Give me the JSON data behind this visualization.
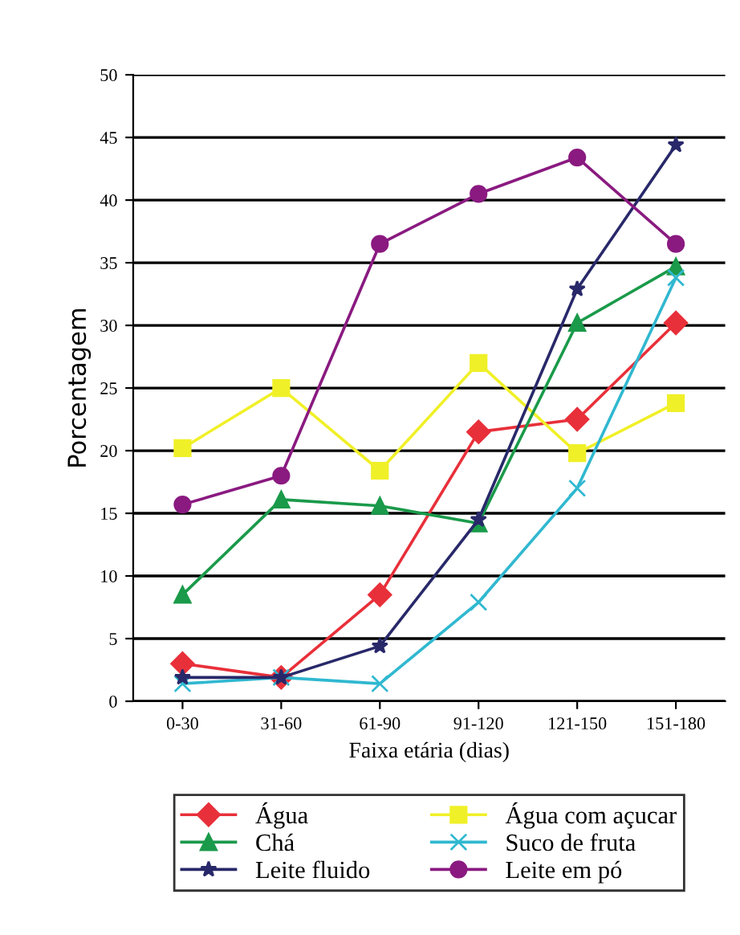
{
  "chart_data": {
    "type": "line",
    "xlabel": "Faixa etária (dias)",
    "ylabel": "Porcentagem",
    "categories": [
      "0-30",
      "31-60",
      "61-90",
      "91-120",
      "121-150",
      "151-180"
    ],
    "series": [
      {
        "name": "Água",
        "color": "#e8303a",
        "marker": "diamond",
        "values": [
          3,
          1.9,
          8.5,
          21.5,
          22.5,
          30.2
        ]
      },
      {
        "name": "Água com açucar",
        "color": "#f0f028",
        "marker": "square",
        "values": [
          20.2,
          25,
          18.4,
          27,
          19.8,
          23.8
        ]
      },
      {
        "name": "Chá",
        "color": "#1a9a4a",
        "marker": "triangle",
        "values": [
          8.5,
          16.1,
          15.6,
          14.2,
          30.2,
          34.7
        ]
      },
      {
        "name": "Suco de fruta",
        "color": "#30b8d0",
        "marker": "cross",
        "values": [
          1.4,
          1.9,
          1.4,
          7.9,
          17,
          33.8
        ]
      },
      {
        "name": "Leite fluido",
        "color": "#28286a",
        "marker": "star",
        "values": [
          1.9,
          1.9,
          4.4,
          14.5,
          32.9,
          44.4
        ]
      },
      {
        "name": "Leite em pó",
        "color": "#8a1a80",
        "marker": "circle",
        "values": [
          15.7,
          18,
          36.5,
          40.5,
          43.4,
          36.5
        ]
      }
    ],
    "ylim": [
      0,
      50
    ],
    "yticks": [
      0,
      5,
      10,
      15,
      20,
      25,
      30,
      35,
      40,
      45,
      50
    ],
    "grid": "y",
    "legend": "bottom",
    "line_style": "solid"
  }
}
